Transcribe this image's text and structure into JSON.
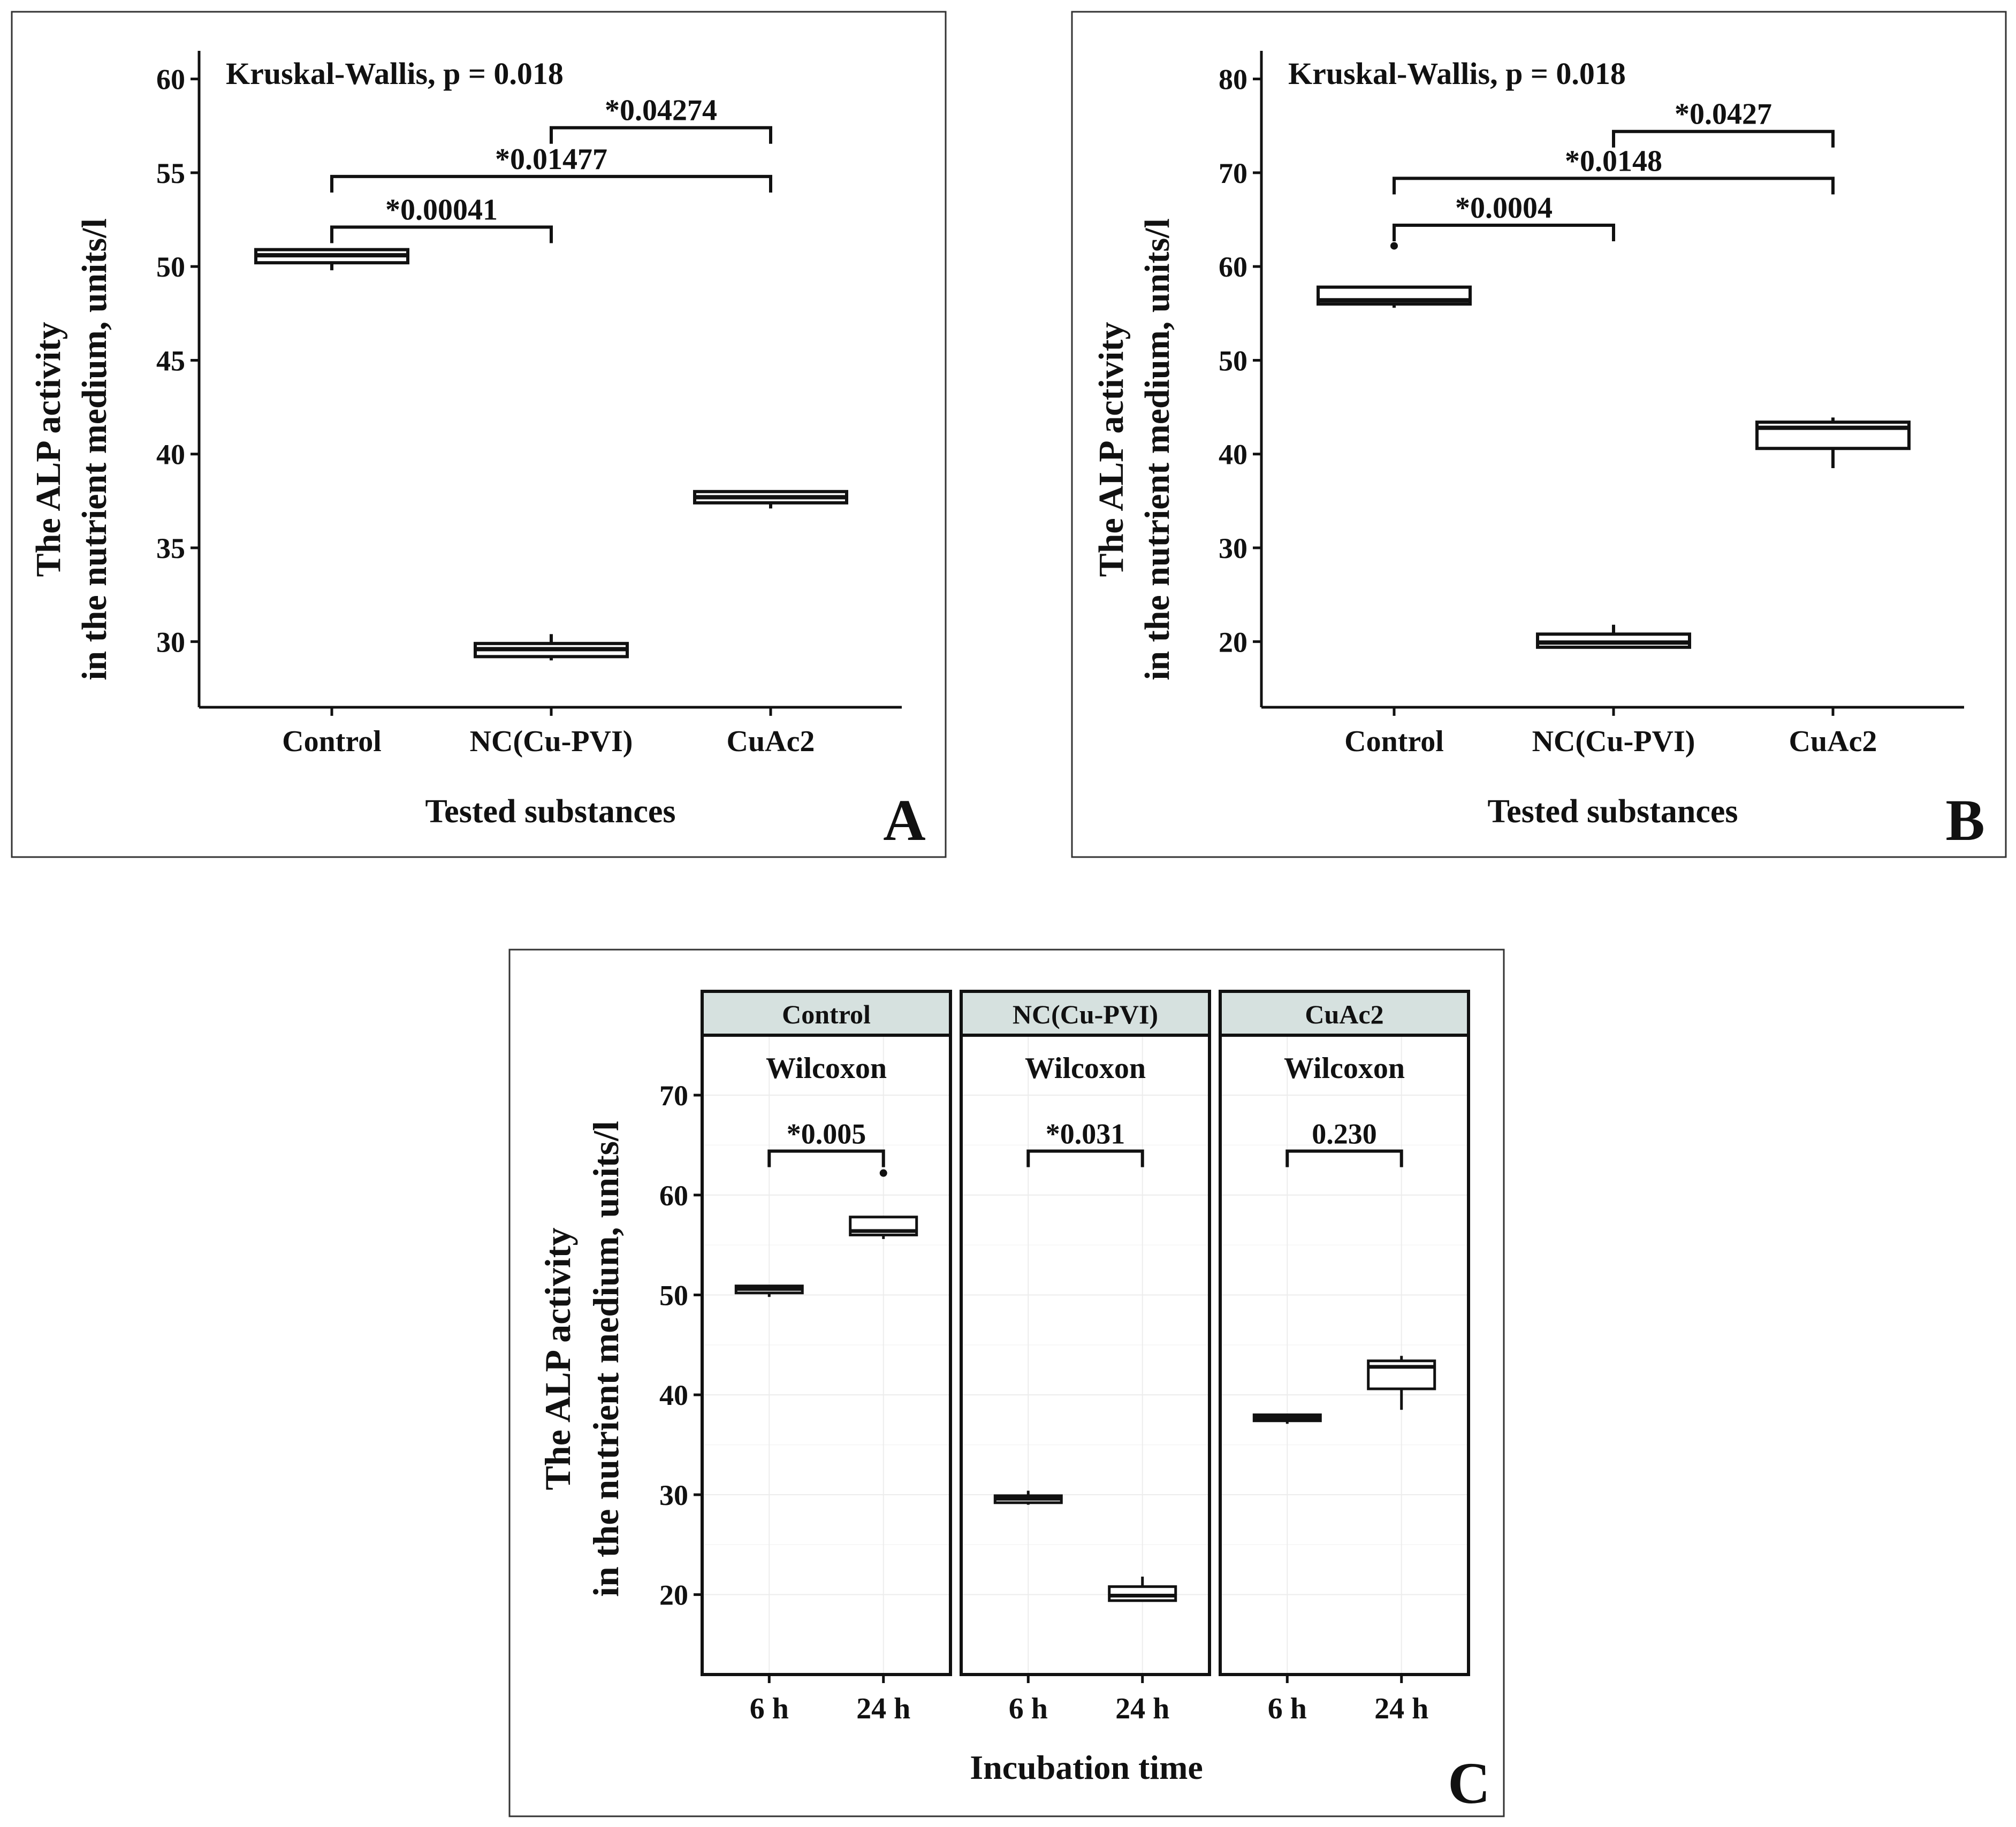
{
  "chart_data": [
    {
      "panel": "A",
      "type": "boxplot",
      "title": "Kruskal-Wallis, p = 0.018",
      "xlabel": "Tested substances",
      "ylabel": [
        "The ALP activity",
        "in the nutrient medium, units/l"
      ],
      "ylim": [
        26.5,
        61.5
      ],
      "yticks": [
        30,
        35,
        40,
        45,
        50,
        55,
        60
      ],
      "categories": [
        "Control",
        "NC(Cu-PVI)",
        "CuAc2"
      ],
      "boxes": [
        {
          "min": 49.8,
          "q1": 50.2,
          "median": 50.6,
          "q3": 50.9,
          "max": 50.9,
          "outliers": []
        },
        {
          "min": 29.0,
          "q1": 29.2,
          "median": 29.6,
          "q3": 29.9,
          "max": 30.4,
          "outliers": []
        },
        {
          "min": 37.1,
          "q1": 37.4,
          "median": 37.7,
          "q3": 38.0,
          "max": 38.0,
          "outliers": []
        }
      ],
      "comparisons": [
        {
          "from": 0,
          "to": 1,
          "label": "*0.00041",
          "y": 52.1
        },
        {
          "from": 0,
          "to": 2,
          "label": "*0.01477",
          "y": 54.8
        },
        {
          "from": 1,
          "to": 2,
          "label": "*0.04274",
          "y": 57.4
        }
      ]
    },
    {
      "panel": "B",
      "type": "boxplot",
      "title": "Kruskal-Wallis, p = 0.018",
      "xlabel": "Tested substances",
      "ylabel": [
        "The ALP activity",
        "in the nutrient medium, units/l"
      ],
      "ylim": [
        13.0,
        83.0
      ],
      "yticks": [
        20,
        30,
        40,
        50,
        60,
        70,
        80
      ],
      "categories": [
        "Control",
        "NC(Cu-PVI)",
        "CuAc2"
      ],
      "boxes": [
        {
          "min": 55.6,
          "q1": 56.0,
          "median": 56.4,
          "q3": 57.8,
          "max": 57.8,
          "outliers": [
            62.2
          ]
        },
        {
          "min": 19.4,
          "q1": 19.4,
          "median": 19.9,
          "q3": 20.8,
          "max": 21.8,
          "outliers": []
        },
        {
          "min": 38.5,
          "q1": 40.6,
          "median": 42.8,
          "q3": 43.4,
          "max": 43.9,
          "outliers": []
        }
      ],
      "comparisons": [
        {
          "from": 0,
          "to": 1,
          "label": "*0.0004",
          "y": 64.4
        },
        {
          "from": 0,
          "to": 2,
          "label": "*0.0148",
          "y": 69.4
        },
        {
          "from": 1,
          "to": 2,
          "label": "*0.0427",
          "y": 74.4
        }
      ]
    },
    {
      "panel": "C",
      "type": "boxplot",
      "xlabel": "Incubation time",
      "ylabel": [
        "The ALP activity",
        "in the nutrient medium, units/l"
      ],
      "ylim": [
        12.0,
        76.0
      ],
      "yticks": [
        20,
        30,
        40,
        50,
        60,
        70
      ],
      "categories": [
        "6 h",
        "24 h"
      ],
      "facets": [
        {
          "name": "Control",
          "test": "Wilcoxon",
          "p": "*0.005",
          "bracket_y": 64.4,
          "boxes": [
            {
              "min": 49.8,
              "q1": 50.2,
              "median": 50.6,
              "q3": 50.9,
              "max": 50.9,
              "outliers": []
            },
            {
              "min": 55.6,
              "q1": 56.0,
              "median": 56.4,
              "q3": 57.8,
              "max": 57.8,
              "outliers": [
                62.2
              ]
            }
          ]
        },
        {
          "name": "NC(Cu-PVI)",
          "test": "Wilcoxon",
          "p": "*0.031",
          "bracket_y": 64.4,
          "boxes": [
            {
              "min": 29.0,
              "q1": 29.2,
              "median": 29.6,
              "q3": 29.9,
              "max": 30.4,
              "outliers": []
            },
            {
              "min": 19.4,
              "q1": 19.4,
              "median": 19.9,
              "q3": 20.8,
              "max": 21.8,
              "outliers": []
            }
          ]
        },
        {
          "name": "CuAc2",
          "test": "Wilcoxon",
          "p": "0.230",
          "bracket_y": 64.4,
          "boxes": [
            {
              "min": 37.1,
              "q1": 37.4,
              "median": 37.7,
              "q3": 38.0,
              "max": 38.0,
              "outliers": []
            },
            {
              "min": 38.5,
              "q1": 40.6,
              "median": 42.8,
              "q3": 43.4,
              "max": 43.9,
              "outliers": []
            }
          ]
        }
      ]
    }
  ]
}
